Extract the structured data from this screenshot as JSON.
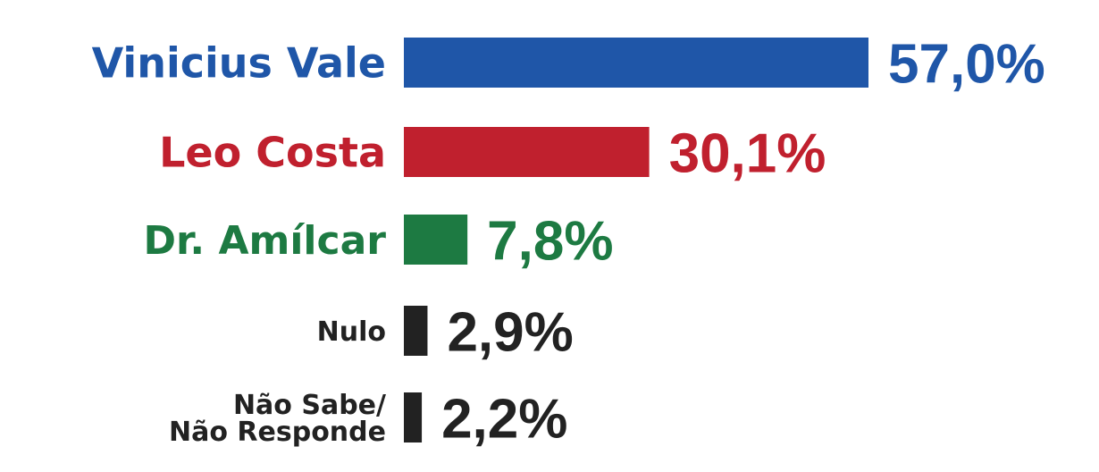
{
  "chart_data": {
    "type": "bar",
    "orientation": "horizontal",
    "categories": [
      "Vinicius Vale",
      "Leo Costa",
      "Dr. Amílcar",
      "Nulo",
      "Não Sabe/ Não Responde"
    ],
    "category_lines": [
      [
        "Vinicius Vale"
      ],
      [
        "Leo Costa"
      ],
      [
        "Dr. Amílcar"
      ],
      [
        "Nulo"
      ],
      [
        "Não Sabe/",
        "Não Responde"
      ]
    ],
    "values": [
      57.0,
      30.1,
      7.8,
      2.9,
      2.2
    ],
    "value_labels": [
      "57,0%",
      "30,1%",
      "7,8%",
      "2,9%",
      "2,2%"
    ],
    "unit": "%",
    "colors": [
      "#1f56a8",
      "#c0202e",
      "#1d7a42",
      "#222222",
      "#222222"
    ],
    "title": "",
    "xlabel": "",
    "ylabel": "",
    "xlim": [
      0,
      57.0
    ],
    "grid": false,
    "legend": "none"
  }
}
